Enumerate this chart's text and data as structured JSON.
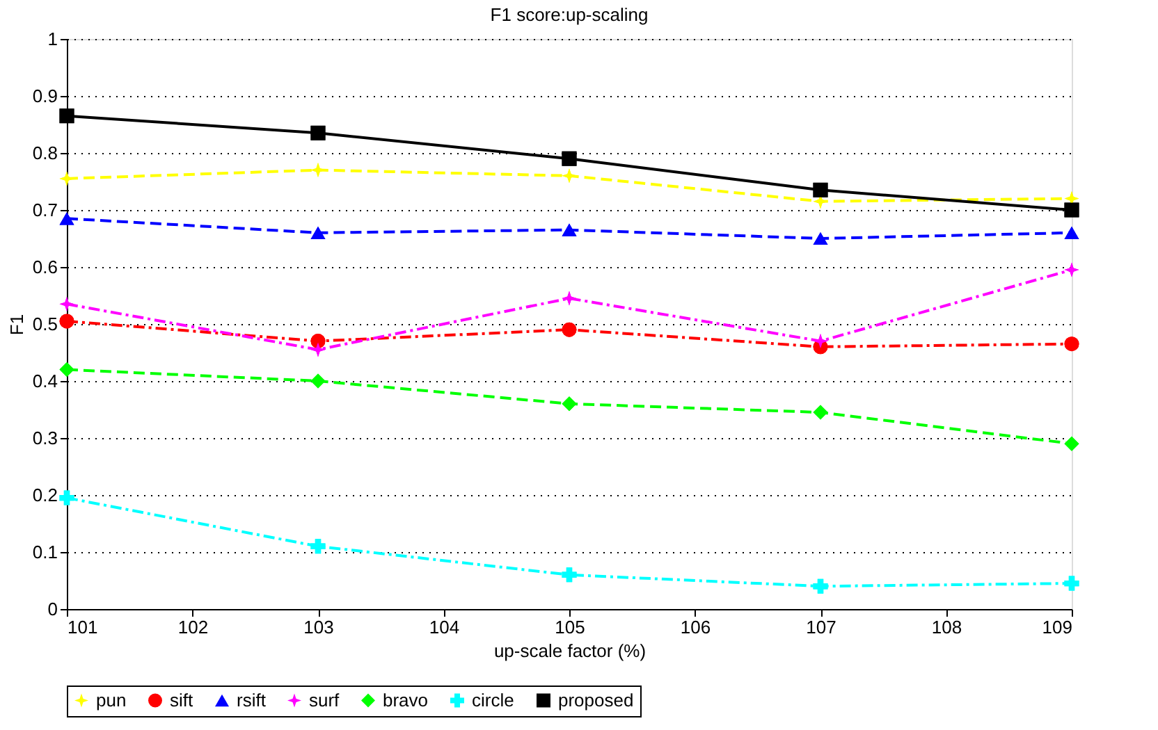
{
  "chart_data": {
    "type": "line",
    "title": "F1 score:up-scaling",
    "xlabel": "up-scale factor (%)",
    "ylabel": "F1",
    "x": [
      101,
      103,
      105,
      107,
      109
    ],
    "series": [
      {
        "name": "pun",
        "color": "#ffff00",
        "marker": "star",
        "line_style": "dashed",
        "values": [
          0.755,
          0.77,
          0.76,
          0.715,
          0.72
        ]
      },
      {
        "name": "sift",
        "color": "#ff0000",
        "marker": "circle",
        "line_style": "dashdot",
        "values": [
          0.505,
          0.47,
          0.49,
          0.46,
          0.465
        ]
      },
      {
        "name": "rsift",
        "color": "#0000ff",
        "marker": "triangle",
        "line_style": "dashed",
        "values": [
          0.685,
          0.66,
          0.665,
          0.65,
          0.66
        ]
      },
      {
        "name": "surf",
        "color": "#ff00ff",
        "marker": "star",
        "line_style": "dashdot",
        "values": [
          0.535,
          0.455,
          0.545,
          0.47,
          0.595
        ]
      },
      {
        "name": "bravo",
        "color": "#00ff00",
        "marker": "diamond",
        "line_style": "dashed",
        "values": [
          0.42,
          0.4,
          0.36,
          0.345,
          0.29
        ]
      },
      {
        "name": "circle",
        "color": "#00ffff",
        "marker": "cross",
        "line_style": "dashdot",
        "values": [
          0.195,
          0.11,
          0.06,
          0.04,
          0.045
        ]
      },
      {
        "name": "proposed",
        "color": "#000000",
        "marker": "square",
        "line_style": "solid",
        "values": [
          0.865,
          0.835,
          0.79,
          0.735,
          0.7
        ]
      }
    ],
    "xlim": [
      101,
      109
    ],
    "xticks": [
      101,
      102,
      103,
      104,
      105,
      106,
      107,
      108,
      109
    ],
    "ylim": [
      0,
      1
    ],
    "yticks": [
      0,
      0.1,
      0.2,
      0.3,
      0.4,
      0.5,
      0.6,
      0.7,
      0.8,
      0.9,
      1
    ],
    "grid": "y",
    "legend": "bottom"
  }
}
